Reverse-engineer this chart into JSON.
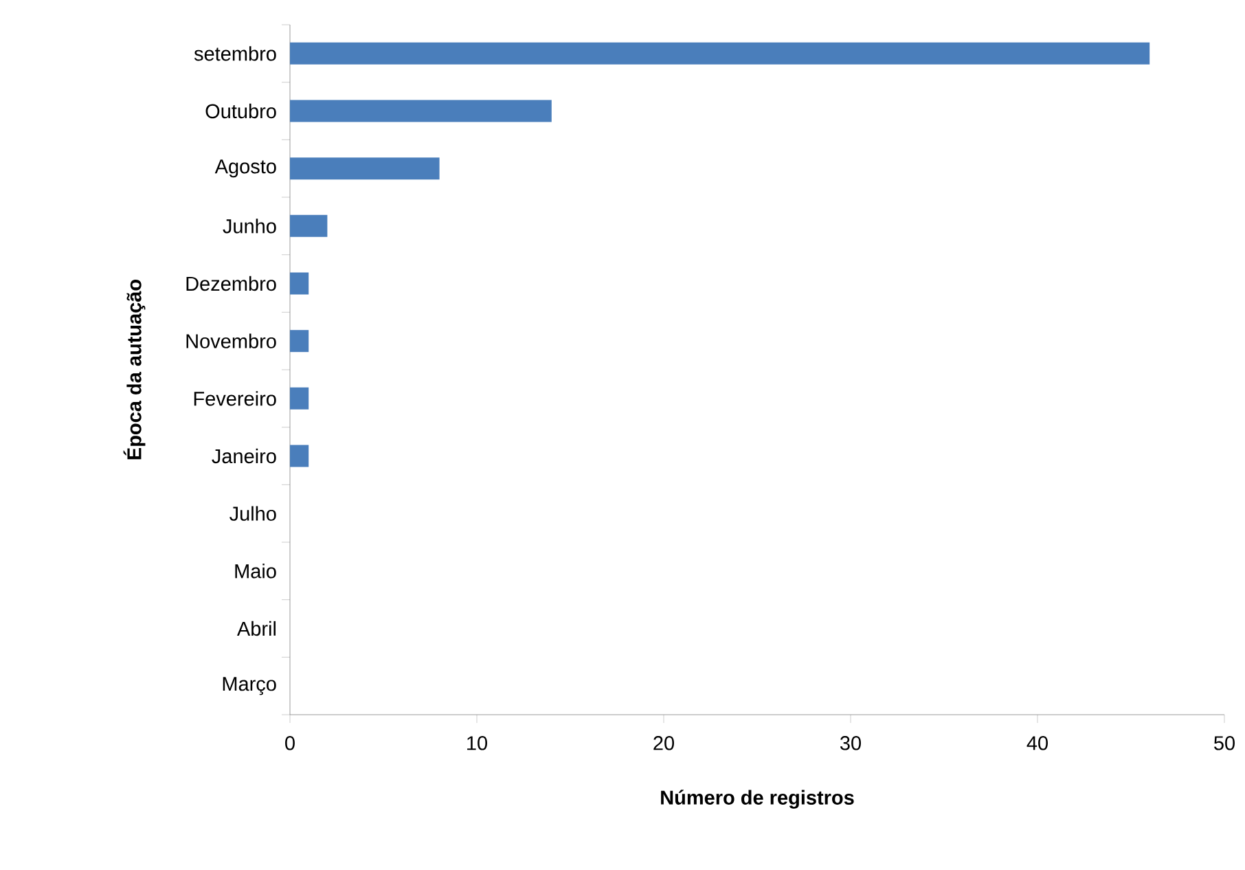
{
  "chart_data": {
    "type": "bar",
    "orientation": "horizontal",
    "xlabel": "Número de registros",
    "ylabel": "Época da autuação",
    "categories": [
      "setembro",
      "Outubro",
      "Agosto",
      "Junho",
      "Dezembro",
      "Novembro",
      "Fevereiro",
      "Janeiro",
      "Julho",
      "Maio",
      "Abril",
      "Março"
    ],
    "values": [
      46,
      14,
      8,
      2,
      1,
      1,
      1,
      1,
      0,
      0,
      0,
      0
    ],
    "color": "#4a7ebb",
    "xlim": [
      0,
      50
    ],
    "xticks": [
      0,
      10,
      20,
      30,
      40,
      50
    ]
  }
}
